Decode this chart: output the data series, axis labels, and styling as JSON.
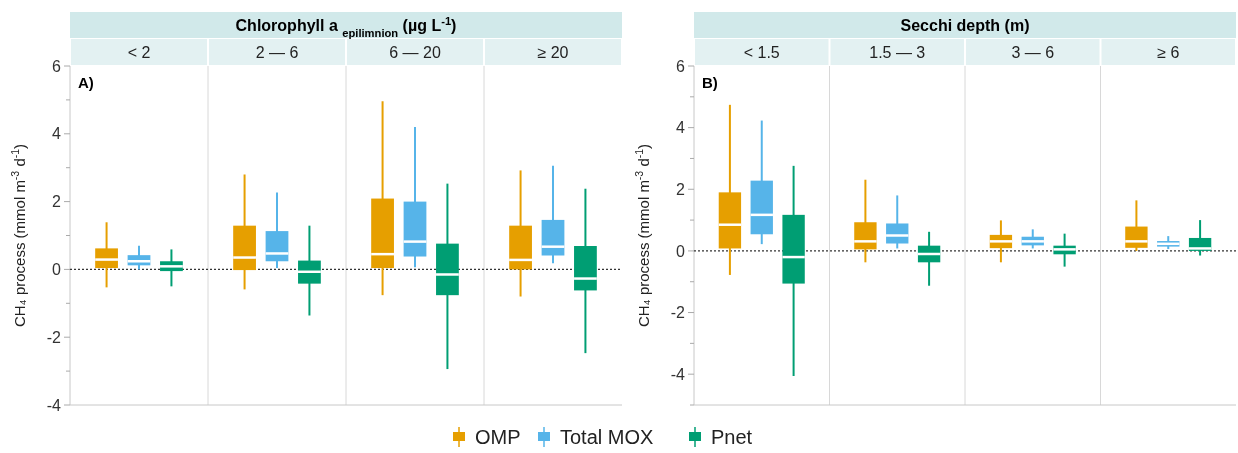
{
  "chart_data": [
    {
      "type": "box",
      "title": "Chlorophyll a $_{epilimnion}$ (µg L$^{-1}$)",
      "categories": [
        "< 2",
        "2 — 6",
        "6 — 20",
        "≥ 20"
      ],
      "ylabel": "CH₄ process (mmol m$^{-3}$ d$^{-1}$)",
      "ylim": [
        -4,
        6
      ],
      "yticks": [
        -4,
        {
          "value": -3,
          "label": null
        },
        -2,
        {
          "value": -1,
          "label": null
        },
        0,
        {
          "value": 1,
          "label": null
        },
        2,
        {
          "value": 3,
          "label": null
        },
        4,
        {
          "value": 5,
          "label": null
        },
        6
      ],
      "annotations": [
        "A)"
      ],
      "ref_lines": [
        {
          "axis": "y",
          "value": 0,
          "line_style": "dotted",
          "color": "#333333"
        }
      ],
      "legend": "bottom",
      "series": [
        {
          "name": "OMP",
          "color": "#e69f00",
          "boxes": [
            {
              "low": -0.53,
              "q1": 0.04,
              "median": 0.29,
              "q3": 0.62,
              "high": 1.39
            },
            {
              "low": -0.59,
              "q1": -0.02,
              "median": 0.35,
              "q3": 1.29,
              "high": 2.8
            },
            {
              "low": -0.76,
              "q1": 0.04,
              "median": 0.45,
              "q3": 2.09,
              "high": 4.96
            },
            {
              "low": -0.8,
              "q1": 0,
              "median": 0.28,
              "q3": 1.29,
              "high": 2.92
            }
          ]
        },
        {
          "name": "Total MOX",
          "color": "#56b4e9",
          "boxes": [
            {
              "low": 0,
              "q1": 0.12,
              "median": 0.24,
              "q3": 0.42,
              "high": 0.7
            },
            {
              "low": 0.04,
              "q1": 0.24,
              "median": 0.47,
              "q3": 1.13,
              "high": 2.27
            },
            {
              "low": 0.06,
              "q1": 0.38,
              "median": 0.82,
              "q3": 2,
              "high": 4.2
            },
            {
              "low": 0.18,
              "q1": 0.41,
              "median": 0.67,
              "q3": 1.46,
              "high": 3.06
            }
          ]
        },
        {
          "name": "Pnet",
          "color": "#009e73",
          "boxes": [
            {
              "low": -0.5,
              "q1": -0.05,
              "median": 0.09,
              "q3": 0.24,
              "high": 0.59
            },
            {
              "low": -1.36,
              "q1": -0.42,
              "median": -0.07,
              "q3": 0.26,
              "high": 1.29
            },
            {
              "low": -2.94,
              "q1": -0.76,
              "median": -0.15,
              "q3": 0.76,
              "high": 2.53
            },
            {
              "low": -2.47,
              "q1": -0.62,
              "median": -0.27,
              "q3": 0.69,
              "high": 2.38
            }
          ]
        }
      ]
    },
    {
      "type": "box",
      "title": "Secchi depth (m)",
      "categories": [
        "< 1.5",
        "1.5 — 3",
        "3 — 6",
        "≥ 6"
      ],
      "ylabel": "CH₄ process (mmol m$^{-3}$ d$^{-1}$)",
      "ylim": [
        -5,
        6
      ],
      "yticks": [
        {
          "value": -5,
          "label": null
        },
        -4,
        {
          "value": -3,
          "label": null
        },
        -2,
        {
          "value": -1,
          "label": null
        },
        0,
        {
          "value": 1,
          "label": null
        },
        2,
        {
          "value": 3,
          "label": null
        },
        4,
        {
          "value": 5,
          "label": null
        },
        6
      ],
      "annotations": [
        "B)"
      ],
      "ref_lines": [
        {
          "axis": "y",
          "value": 0,
          "line_style": "dotted",
          "color": "#333333"
        }
      ],
      "series": [
        {
          "color": "#e69f00",
          "boxes": [
            {
              "low": -0.78,
              "q1": 0.08,
              "median": 0.85,
              "q3": 1.9,
              "high": 4.74
            },
            {
              "low": -0.37,
              "q1": 0.05,
              "median": 0.31,
              "q3": 0.93,
              "high": 2.31
            },
            {
              "low": -0.37,
              "q1": 0.09,
              "median": 0.31,
              "q3": 0.52,
              "high": 0.99
            },
            {
              "low": 0,
              "q1": 0.1,
              "median": 0.31,
              "q3": 0.79,
              "high": 1.64
            }
          ]
        },
        {
          "color": "#56b4e9",
          "boxes": [
            {
              "low": 0.22,
              "q1": 0.54,
              "median": 1.17,
              "q3": 2.28,
              "high": 4.23
            },
            {
              "low": 0.08,
              "q1": 0.24,
              "median": 0.5,
              "q3": 0.89,
              "high": 1.8
            },
            {
              "low": 0.08,
              "q1": 0.18,
              "median": 0.31,
              "q3": 0.46,
              "high": 0.7
            },
            {
              "low": 0.06,
              "q1": 0.14,
              "median": 0.23,
              "q3": 0.32,
              "high": 0.48
            }
          ]
        },
        {
          "color": "#009e73",
          "boxes": [
            {
              "low": -4.06,
              "q1": -1.06,
              "median": -0.2,
              "q3": 1.17,
              "high": 2.76
            },
            {
              "low": -1.13,
              "q1": -0.37,
              "median": -0.1,
              "q3": 0.17,
              "high": 0.62
            },
            {
              "low": -0.51,
              "q1": -0.11,
              "median": 0.05,
              "q3": 0.17,
              "high": 0.56
            },
            {
              "low": -0.15,
              "q1": 0,
              "median": 0.08,
              "q3": 0.42,
              "high": 1
            }
          ]
        }
      ]
    }
  ]
}
